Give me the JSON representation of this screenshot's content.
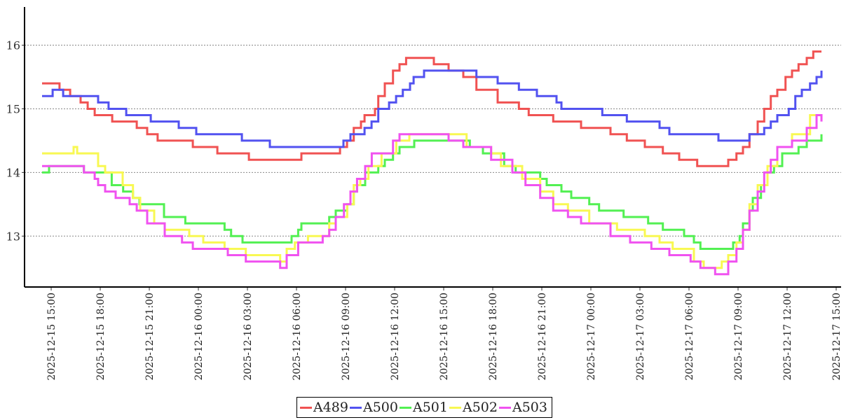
{
  "chart_data": {
    "type": "line",
    "line_style": "step",
    "title": "",
    "xlabel": "",
    "ylabel": "",
    "x_unit": "hours since 2025-12-15 15:00",
    "xlim": [
      -1.63,
      48.3
    ],
    "ylim": [
      12.2,
      16.6
    ],
    "grid": "horizontal dotted",
    "legend_position": "bottom-center",
    "yticks": [
      13,
      14,
      15,
      16
    ],
    "xticks": [
      0,
      3,
      6,
      9,
      12,
      15,
      18,
      21,
      24,
      27,
      30,
      33,
      36,
      39,
      42,
      45,
      48
    ],
    "xtick_labels": [
      "2025-12-15  15:00",
      "2025-12-15  18:00",
      "2025-12-15  21:00",
      "2025-12-16  00:00",
      "2025-12-16  03:00",
      "2025-12-16  06:00",
      "2025-12-16  09:00",
      "2025-12-16  12:00",
      "2025-12-16  15:00",
      "2025-12-16  18:00",
      "2025-12-16  21:00",
      "2025-12-17  00:00",
      "2025-12-17  03:00",
      "2025-12-17  06:00",
      "2025-12-17  09:00",
      "2025-12-17  12:00",
      "2025-12-17  15:00"
    ],
    "series": [
      {
        "name": "A489",
        "color": "#f05252",
        "points": [
          [
            -0.56,
            15.4
          ],
          [
            0.51,
            15.3
          ],
          [
            1.16,
            15.2
          ],
          [
            1.8,
            15.1
          ],
          [
            2.23,
            15.0
          ],
          [
            2.66,
            14.9
          ],
          [
            3.73,
            14.8
          ],
          [
            5.23,
            14.7
          ],
          [
            5.87,
            14.6
          ],
          [
            6.51,
            14.5
          ],
          [
            8.66,
            14.4
          ],
          [
            10.16,
            14.3
          ],
          [
            12.09,
            14.2
          ],
          [
            15.3,
            14.3
          ],
          [
            17.66,
            14.4
          ],
          [
            18.09,
            14.5
          ],
          [
            18.5,
            14.7
          ],
          [
            18.94,
            14.8
          ],
          [
            19.16,
            14.9
          ],
          [
            19.8,
            15.0
          ],
          [
            20.0,
            15.2
          ],
          [
            20.4,
            15.4
          ],
          [
            20.9,
            15.6
          ],
          [
            21.3,
            15.7
          ],
          [
            21.7,
            15.8
          ],
          [
            23.4,
            15.7
          ],
          [
            24.3,
            15.6
          ],
          [
            25.2,
            15.5
          ],
          [
            26.0,
            15.3
          ],
          [
            27.3,
            15.1
          ],
          [
            28.6,
            15.0
          ],
          [
            29.2,
            14.9
          ],
          [
            30.7,
            14.8
          ],
          [
            32.4,
            14.7
          ],
          [
            34.2,
            14.6
          ],
          [
            35.2,
            14.5
          ],
          [
            36.3,
            14.4
          ],
          [
            37.4,
            14.3
          ],
          [
            38.4,
            14.2
          ],
          [
            39.5,
            14.1
          ],
          [
            41.4,
            14.2
          ],
          [
            41.9,
            14.3
          ],
          [
            42.3,
            14.4
          ],
          [
            42.7,
            14.6
          ],
          [
            43.2,
            14.8
          ],
          [
            43.6,
            15.0
          ],
          [
            44.0,
            15.2
          ],
          [
            44.4,
            15.3
          ],
          [
            44.9,
            15.5
          ],
          [
            45.3,
            15.6
          ],
          [
            45.7,
            15.7
          ],
          [
            46.2,
            15.8
          ],
          [
            46.6,
            15.9
          ],
          [
            47.1,
            15.9
          ]
        ]
      },
      {
        "name": "A500",
        "color": "#5252f0",
        "points": [
          [
            -0.56,
            15.2
          ],
          [
            0.09,
            15.3
          ],
          [
            0.73,
            15.2
          ],
          [
            2.87,
            15.1
          ],
          [
            3.51,
            15.0
          ],
          [
            4.59,
            14.9
          ],
          [
            6.09,
            14.8
          ],
          [
            7.8,
            14.7
          ],
          [
            8.87,
            14.6
          ],
          [
            11.66,
            14.5
          ],
          [
            13.37,
            14.4
          ],
          [
            17.87,
            14.5
          ],
          [
            18.3,
            14.6
          ],
          [
            19.16,
            14.7
          ],
          [
            19.59,
            14.8
          ],
          [
            20.0,
            15.0
          ],
          [
            20.66,
            15.1
          ],
          [
            21.09,
            15.2
          ],
          [
            21.5,
            15.3
          ],
          [
            21.94,
            15.4
          ],
          [
            22.16,
            15.5
          ],
          [
            22.8,
            15.6
          ],
          [
            25.16,
            15.6
          ],
          [
            26.0,
            15.5
          ],
          [
            27.3,
            15.4
          ],
          [
            28.6,
            15.3
          ],
          [
            29.7,
            15.2
          ],
          [
            30.9,
            15.1
          ],
          [
            31.2,
            15.0
          ],
          [
            33.7,
            14.9
          ],
          [
            35.2,
            14.8
          ],
          [
            37.2,
            14.7
          ],
          [
            37.8,
            14.6
          ],
          [
            40.8,
            14.5
          ],
          [
            42.7,
            14.6
          ],
          [
            43.6,
            14.7
          ],
          [
            44.0,
            14.8
          ],
          [
            44.4,
            14.9
          ],
          [
            45.1,
            15.0
          ],
          [
            45.5,
            15.2
          ],
          [
            45.9,
            15.3
          ],
          [
            46.4,
            15.4
          ],
          [
            46.8,
            15.5
          ],
          [
            47.1,
            15.6
          ]
        ]
      },
      {
        "name": "A501",
        "color": "#52f052",
        "points": [
          [
            -0.56,
            14.0
          ],
          [
            -0.13,
            14.1
          ],
          [
            2.0,
            14.0
          ],
          [
            3.7,
            13.8
          ],
          [
            4.4,
            13.7
          ],
          [
            5.0,
            13.6
          ],
          [
            5.4,
            13.5
          ],
          [
            6.9,
            13.3
          ],
          [
            8.2,
            13.2
          ],
          [
            10.6,
            13.1
          ],
          [
            11.0,
            13.0
          ],
          [
            11.7,
            12.9
          ],
          [
            14.7,
            13.0
          ],
          [
            15.1,
            13.1
          ],
          [
            15.3,
            13.2
          ],
          [
            17.0,
            13.3
          ],
          [
            17.4,
            13.4
          ],
          [
            18.1,
            13.5
          ],
          [
            18.5,
            13.7
          ],
          [
            18.7,
            13.8
          ],
          [
            19.2,
            14.0
          ],
          [
            20.0,
            14.1
          ],
          [
            20.4,
            14.2
          ],
          [
            20.9,
            14.3
          ],
          [
            21.3,
            14.4
          ],
          [
            22.2,
            14.5
          ],
          [
            25.6,
            14.4
          ],
          [
            26.4,
            14.3
          ],
          [
            27.7,
            14.1
          ],
          [
            28.4,
            14.0
          ],
          [
            29.9,
            13.9
          ],
          [
            30.3,
            13.8
          ],
          [
            31.2,
            13.7
          ],
          [
            31.8,
            13.6
          ],
          [
            32.9,
            13.5
          ],
          [
            33.5,
            13.4
          ],
          [
            35.0,
            13.3
          ],
          [
            36.5,
            13.2
          ],
          [
            37.4,
            13.1
          ],
          [
            38.7,
            13.0
          ],
          [
            39.3,
            12.9
          ],
          [
            39.7,
            12.8
          ],
          [
            41.7,
            12.9
          ],
          [
            42.1,
            13.0
          ],
          [
            42.3,
            13.2
          ],
          [
            42.7,
            13.4
          ],
          [
            42.9,
            13.6
          ],
          [
            43.4,
            13.8
          ],
          [
            43.8,
            14.0
          ],
          [
            44.2,
            14.1
          ],
          [
            44.7,
            14.3
          ],
          [
            45.7,
            14.4
          ],
          [
            46.2,
            14.5
          ],
          [
            47.1,
            14.6
          ]
        ]
      },
      {
        "name": "A502",
        "color": "#f8f852",
        "points": [
          [
            -0.56,
            14.3
          ],
          [
            1.37,
            14.4
          ],
          [
            1.59,
            14.3
          ],
          [
            2.87,
            14.1
          ],
          [
            3.3,
            14.0
          ],
          [
            4.37,
            13.8
          ],
          [
            5.0,
            13.6
          ],
          [
            5.44,
            13.4
          ],
          [
            6.3,
            13.2
          ],
          [
            6.94,
            13.1
          ],
          [
            8.44,
            13.0
          ],
          [
            9.3,
            12.9
          ],
          [
            10.6,
            12.8
          ],
          [
            11.9,
            12.7
          ],
          [
            14.0,
            12.6
          ],
          [
            14.4,
            12.8
          ],
          [
            14.9,
            12.9
          ],
          [
            15.7,
            13.0
          ],
          [
            17.0,
            13.2
          ],
          [
            17.4,
            13.3
          ],
          [
            18.1,
            13.5
          ],
          [
            18.5,
            13.8
          ],
          [
            18.9,
            13.9
          ],
          [
            19.4,
            14.1
          ],
          [
            20.2,
            14.3
          ],
          [
            21.1,
            14.5
          ],
          [
            21.9,
            14.6
          ],
          [
            25.4,
            14.4
          ],
          [
            26.9,
            14.3
          ],
          [
            27.5,
            14.1
          ],
          [
            28.8,
            13.9
          ],
          [
            29.9,
            13.7
          ],
          [
            30.7,
            13.5
          ],
          [
            31.6,
            13.4
          ],
          [
            32.9,
            13.2
          ],
          [
            34.6,
            13.1
          ],
          [
            36.3,
            13.0
          ],
          [
            37.2,
            12.9
          ],
          [
            38.0,
            12.8
          ],
          [
            39.3,
            12.6
          ],
          [
            39.9,
            12.5
          ],
          [
            41.0,
            12.6
          ],
          [
            41.4,
            12.7
          ],
          [
            41.9,
            12.9
          ],
          [
            42.3,
            13.1
          ],
          [
            42.7,
            13.5
          ],
          [
            43.2,
            13.8
          ],
          [
            43.8,
            14.1
          ],
          [
            44.4,
            14.4
          ],
          [
            45.3,
            14.6
          ],
          [
            46.4,
            14.9
          ],
          [
            47.1,
            14.9
          ]
        ]
      },
      {
        "name": "A503",
        "color": "#f052f0",
        "points": [
          [
            -0.56,
            14.1
          ],
          [
            2.0,
            14.0
          ],
          [
            2.66,
            13.9
          ],
          [
            2.87,
            13.8
          ],
          [
            3.3,
            13.7
          ],
          [
            3.94,
            13.6
          ],
          [
            4.8,
            13.5
          ],
          [
            5.23,
            13.4
          ],
          [
            5.87,
            13.2
          ],
          [
            6.94,
            13.0
          ],
          [
            8.0,
            12.9
          ],
          [
            8.66,
            12.8
          ],
          [
            10.8,
            12.7
          ],
          [
            11.9,
            12.6
          ],
          [
            14.0,
            12.5
          ],
          [
            14.4,
            12.7
          ],
          [
            15.1,
            12.9
          ],
          [
            16.6,
            13.0
          ],
          [
            17.0,
            13.1
          ],
          [
            17.4,
            13.3
          ],
          [
            17.9,
            13.5
          ],
          [
            18.3,
            13.7
          ],
          [
            18.7,
            13.9
          ],
          [
            19.2,
            14.1
          ],
          [
            19.6,
            14.3
          ],
          [
            20.9,
            14.5
          ],
          [
            21.3,
            14.6
          ],
          [
            24.3,
            14.5
          ],
          [
            25.2,
            14.4
          ],
          [
            26.9,
            14.2
          ],
          [
            28.2,
            14.0
          ],
          [
            29.0,
            13.8
          ],
          [
            29.9,
            13.6
          ],
          [
            30.7,
            13.4
          ],
          [
            31.6,
            13.3
          ],
          [
            32.4,
            13.2
          ],
          [
            34.2,
            13.0
          ],
          [
            35.4,
            12.9
          ],
          [
            36.7,
            12.8
          ],
          [
            37.8,
            12.7
          ],
          [
            39.1,
            12.6
          ],
          [
            39.7,
            12.5
          ],
          [
            40.6,
            12.4
          ],
          [
            41.4,
            12.6
          ],
          [
            41.9,
            12.8
          ],
          [
            42.3,
            13.1
          ],
          [
            42.7,
            13.4
          ],
          [
            43.2,
            13.7
          ],
          [
            43.6,
            14.0
          ],
          [
            44.0,
            14.2
          ],
          [
            44.4,
            14.4
          ],
          [
            45.3,
            14.5
          ],
          [
            46.2,
            14.7
          ],
          [
            46.8,
            14.9
          ],
          [
            47.1,
            14.8
          ]
        ]
      }
    ]
  }
}
